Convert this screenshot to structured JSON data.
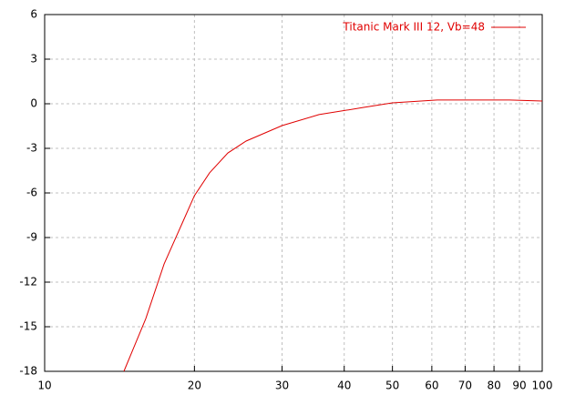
{
  "chart_data": {
    "type": "line",
    "log_x": true,
    "grid": true,
    "legend": "upper right",
    "xlim": [
      10,
      100
    ],
    "xticks": [
      10,
      20,
      30,
      40,
      50,
      60,
      70,
      80,
      90,
      100
    ],
    "ylim": [
      -18,
      6
    ],
    "yticks": [
      6,
      3,
      0,
      -3,
      -6,
      -9,
      -12,
      -15,
      -18
    ],
    "x": [
      14.43,
      15.97,
      17.38,
      18.91,
      20,
      21.45,
      23.35,
      25.4,
      30,
      35.6,
      43.9,
      50,
      61.5,
      86,
      100
    ],
    "series": [
      {
        "name": "Titanic Mark III 12, Vb=48",
        "color": "#e00000",
        "values": [
          -18,
          -14.45,
          -10.78,
          -8.02,
          -6.18,
          -4.65,
          -3.31,
          -2.51,
          -1.47,
          -0.73,
          -0.24,
          0.06,
          0.25,
          0.25,
          0.18
        ]
      }
    ]
  }
}
